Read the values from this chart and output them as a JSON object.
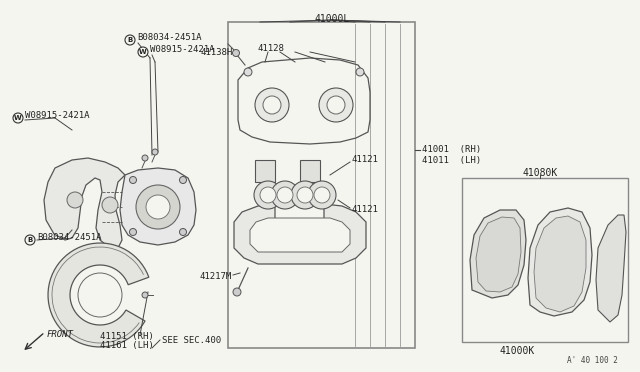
{
  "bg_color": "#f5f5f0",
  "line_color": "#444444",
  "label_color": "#222222",
  "box_color": "#888888",
  "labels": {
    "B08034_top": "B08034-2451A",
    "W08915_top": "W08915-2421A",
    "W08915_left": "W08915-2421A",
    "B08034_bot": "B08034-2451A",
    "l41128": "41128",
    "l41138H": "41138H",
    "l41121a": "41121",
    "l41121b": "41121",
    "l41217M": "41217M",
    "l41000L": "41000L",
    "l41001": "41001  (RH)",
    "l41011": "41011  (LH)",
    "l41151": "41151 (RH)",
    "l41161": "41161 (LH)",
    "l41080K": "41080K",
    "l41000K": "41000K",
    "see_sec": "SEE SEC.400",
    "front": "FRONT",
    "footnote": "A' 40 100 2"
  }
}
